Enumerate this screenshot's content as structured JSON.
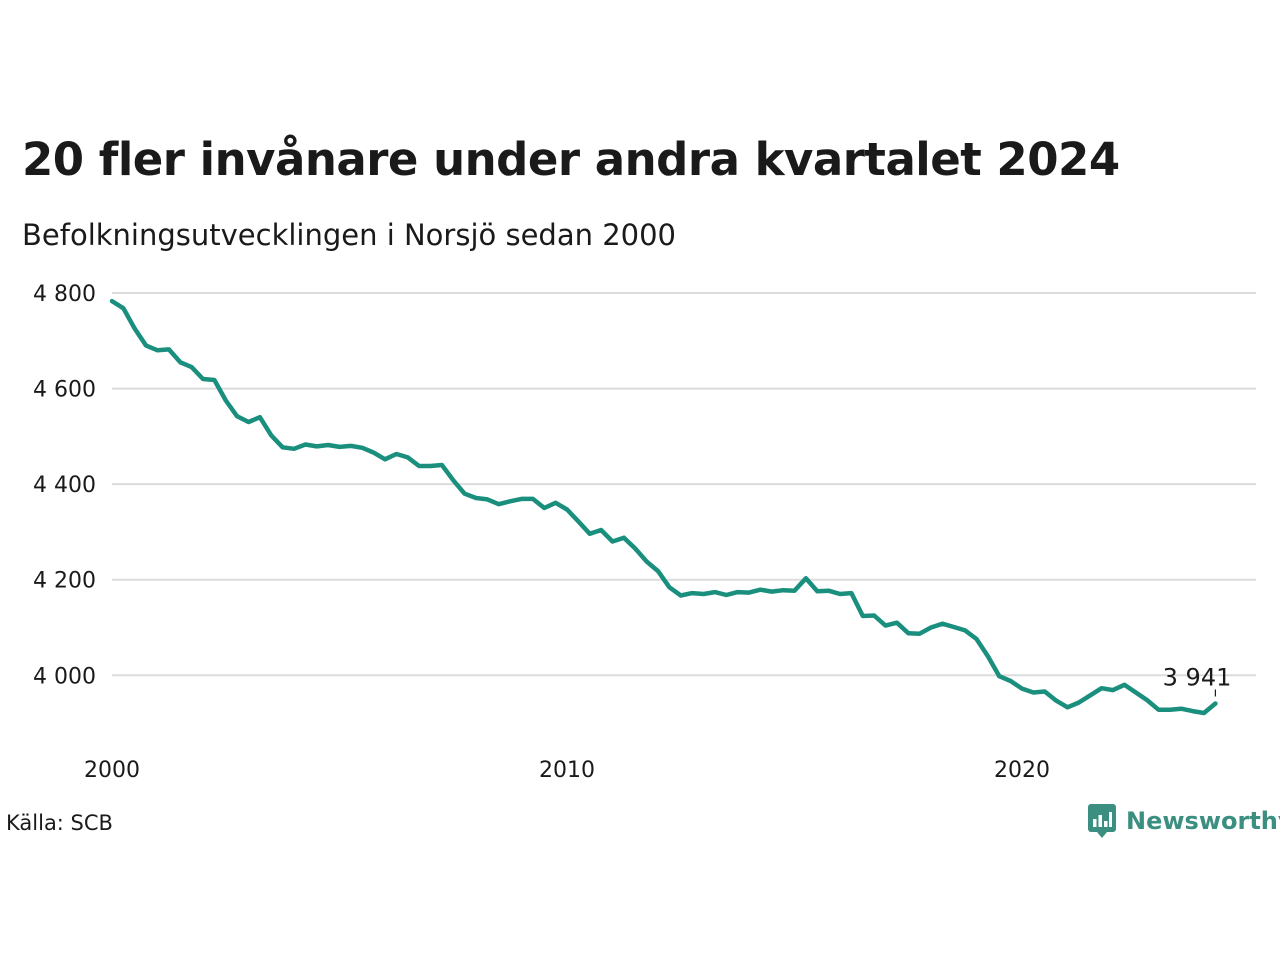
{
  "title": "20 fler invånare under andra kvartalet 2024",
  "subtitle": "Befolkningsutvecklingen i Norsjö sedan 2000",
  "source": "Källa: SCB",
  "brand": "Newsworthy",
  "colors": {
    "line": "#1a8f7e",
    "grid": "#dcdcdc",
    "brand": "#3a8f80"
  },
  "chart_data": {
    "type": "line",
    "x_start": "2000-Q1",
    "x_step": "quarter",
    "x_ticks": [
      2000,
      2010,
      2020
    ],
    "x_tick_labels": [
      "2000",
      "2010",
      "2020"
    ],
    "ylim": [
      3875,
      4800
    ],
    "y_ticks": [
      4000,
      4200,
      4400,
      4600,
      4800
    ],
    "y_tick_labels": [
      "4 000",
      "4 200",
      "4 400",
      "4 600",
      "4 800"
    ],
    "grid": true,
    "last_value_label": "3 941",
    "series": [
      {
        "values": [
          4783,
          4768,
          4725,
          4690,
          4680,
          4682,
          4655,
          4645,
          4620,
          4618,
          4575,
          4542,
          4530,
          4540,
          4502,
          4477,
          4474,
          4483,
          4479,
          4482,
          4478,
          4480,
          4476,
          4466,
          4452,
          4463,
          4456,
          4438,
          4438,
          4440,
          4408,
          4380,
          4371,
          4368,
          4358,
          4364,
          4369,
          4369,
          4350,
          4361,
          4347,
          4322,
          4296,
          4304,
          4280,
          4288,
          4265,
          4238,
          4218,
          4184,
          4167,
          4172,
          4170,
          4174,
          4168,
          4174,
          4173,
          4179,
          4175,
          4178,
          4177,
          4203,
          4176,
          4177,
          4170,
          4172,
          4124,
          4125,
          4104,
          4110,
          4088,
          4087,
          4100,
          4108,
          4101,
          4094,
          4076,
          4040,
          3998,
          3988,
          3972,
          3964,
          3966,
          3947,
          3933,
          3943,
          3958,
          3973,
          3969,
          3980,
          3964,
          3948,
          3928,
          3928,
          3930,
          3925,
          3921,
          3941
        ]
      }
    ]
  }
}
